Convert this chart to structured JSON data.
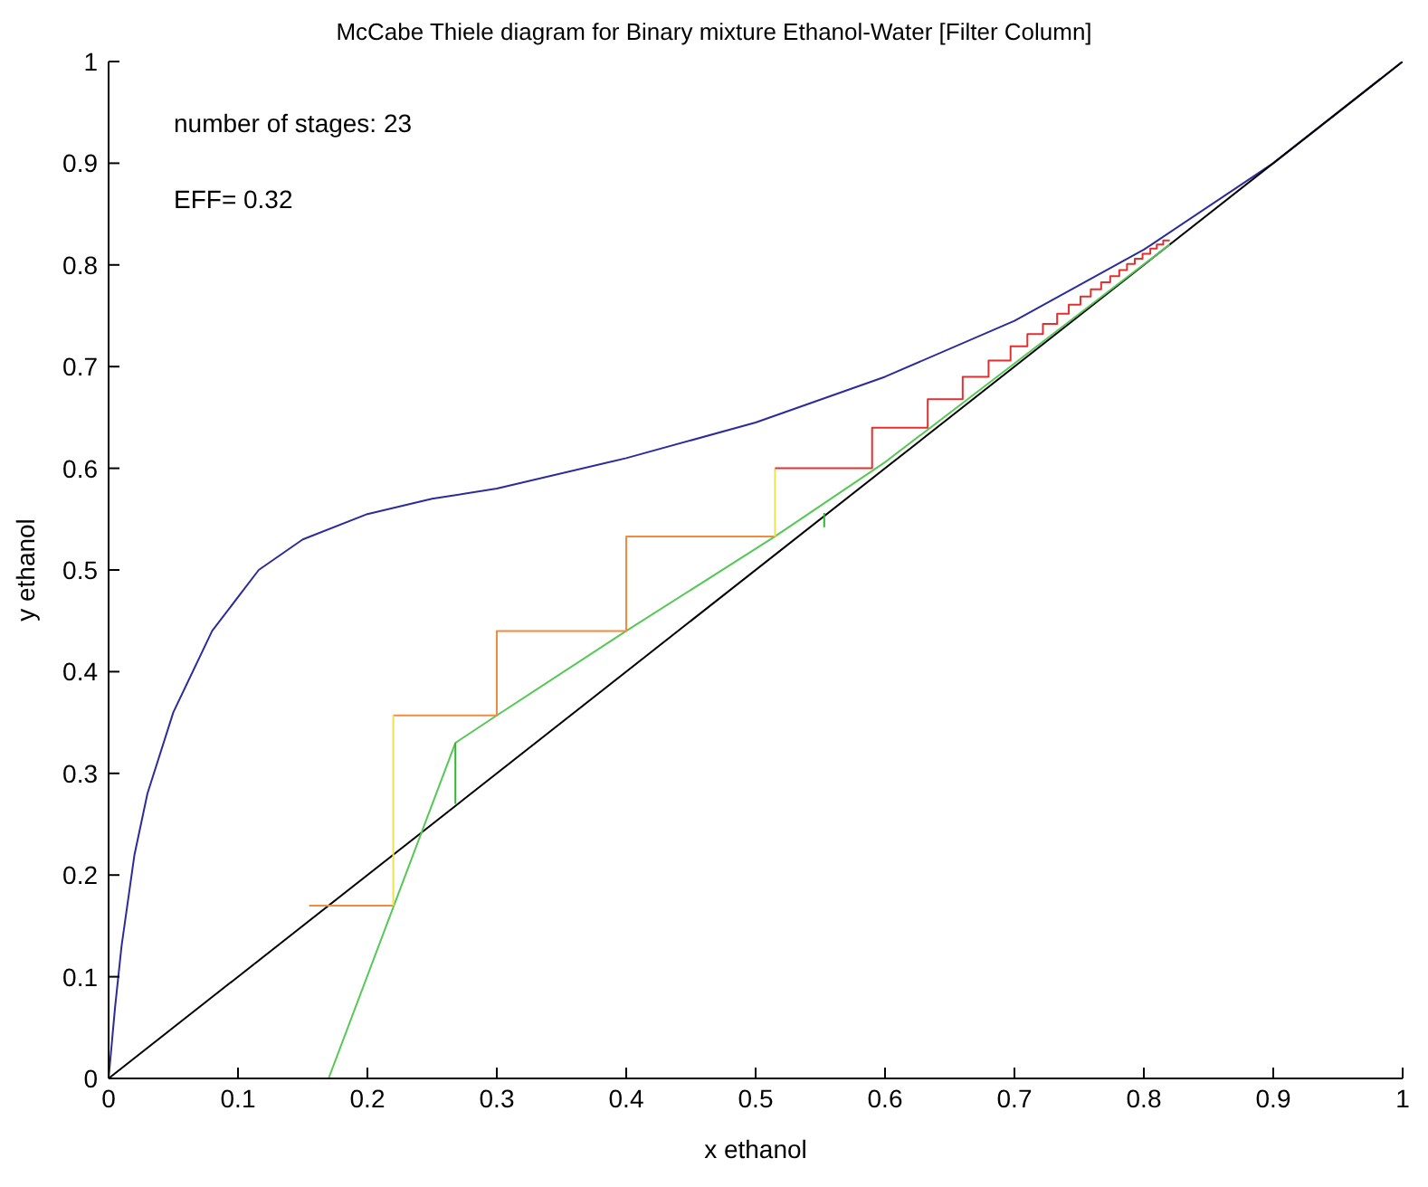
{
  "chart_data": {
    "type": "line",
    "title": "McCabe Thiele diagram for Binary mixture Ethanol-Water [Filter Column]",
    "xlabel": "x ethanol",
    "ylabel": "y ethanol",
    "annotations": [
      "number of stages: 23",
      "EFF= 0.32"
    ],
    "xlim": [
      0,
      1
    ],
    "ylim": [
      0,
      1
    ],
    "xticks": [
      0,
      0.1,
      0.2,
      0.3,
      0.4,
      0.5,
      0.6,
      0.7,
      0.8,
      0.9,
      1
    ],
    "yticks": [
      0,
      0.1,
      0.2,
      0.3,
      0.4,
      0.5,
      0.6,
      0.7,
      0.8,
      0.9,
      1
    ],
    "grid": false,
    "marker": "none",
    "line_style": "solid",
    "series": [
      {
        "color": "#2b2b9c",
        "x": [
          0,
          0.005,
          0.01,
          0.02,
          0.03,
          0.05,
          0.08,
          0.116,
          0.15,
          0.2,
          0.25,
          0.3,
          0.4,
          0.5,
          0.6,
          0.7,
          0.8,
          0.9,
          1
        ],
        "values": [
          0,
          0.07,
          0.13,
          0.22,
          0.28,
          0.36,
          0.44,
          0.5,
          0.53,
          0.555,
          0.57,
          0.58,
          0.61,
          0.645,
          0.69,
          0.745,
          0.815,
          0.9,
          1
        ]
      },
      {
        "color": "#000000",
        "x": [
          0,
          1
        ],
        "values": [
          0,
          1
        ]
      },
      {
        "color": "#55c855",
        "x": [
          0.17,
          0.268,
          0.3,
          0.4,
          0.515,
          0.6,
          0.7,
          0.82
        ],
        "values": [
          0,
          0.33,
          0.357,
          0.44,
          0.533,
          0.606,
          0.703,
          0.82
        ]
      },
      {
        "color": "#2eb82e",
        "x": [
          0.268,
          0.268,
          null,
          0.553,
          0.553
        ],
        "values": [
          0.27,
          0.33,
          null,
          0.542,
          0.556
        ]
      },
      {
        "color": "#f08c3c",
        "x": [
          0.155,
          0.22,
          null,
          0.22,
          0.3,
          0.3,
          0.4,
          0.4,
          0.515
        ],
        "values": [
          0.17,
          0.17,
          null,
          0.357,
          0.357,
          0.44,
          0.44,
          0.533,
          0.533
        ]
      },
      {
        "color": "#f0e050",
        "x": [
          0.22,
          0.22,
          null,
          0.515,
          0.515
        ],
        "values": [
          0.17,
          0.357,
          null,
          0.533,
          0.6
        ]
      },
      {
        "color": "#e03030",
        "x": [
          0.515,
          0.59,
          0.59,
          0.633,
          0.633,
          0.66,
          0.66,
          0.68,
          0.68,
          0.697,
          0.697,
          0.71,
          0.71,
          0.722,
          0.722,
          0.733,
          0.733,
          0.742,
          0.742,
          0.751,
          0.751,
          0.759,
          0.759,
          0.767,
          0.767,
          0.774,
          0.774,
          0.781,
          0.781,
          0.787,
          0.787,
          0.793,
          0.793,
          0.799,
          0.799,
          0.805,
          0.805,
          0.81,
          0.81,
          0.815,
          0.815,
          0.82
        ],
        "values": [
          0.6,
          0.6,
          0.64,
          0.64,
          0.668,
          0.668,
          0.69,
          0.69,
          0.706,
          0.706,
          0.72,
          0.72,
          0.732,
          0.732,
          0.742,
          0.742,
          0.752,
          0.752,
          0.761,
          0.761,
          0.769,
          0.769,
          0.776,
          0.776,
          0.783,
          0.783,
          0.789,
          0.789,
          0.795,
          0.795,
          0.801,
          0.801,
          0.806,
          0.806,
          0.811,
          0.811,
          0.816,
          0.816,
          0.82,
          0.82,
          0.824,
          0.824
        ]
      }
    ]
  }
}
